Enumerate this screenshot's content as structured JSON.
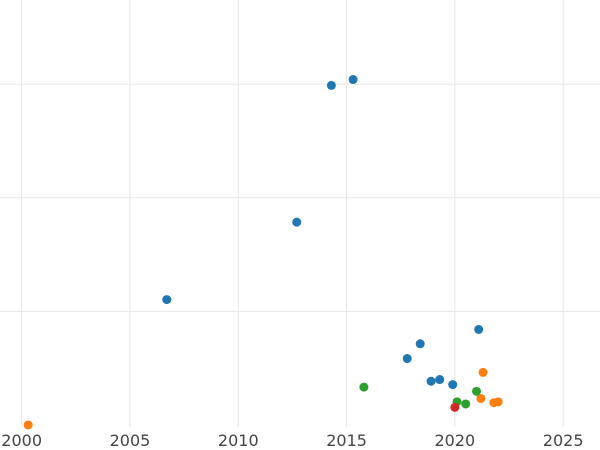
{
  "chart_data": {
    "type": "scatter",
    "title": "",
    "xlabel": "",
    "ylabel": "",
    "xlim": [
      1999.0,
      2026.7
    ],
    "ylim": [
      0,
      1.01
    ],
    "x_ticks": [
      2000,
      2005,
      2010,
      2015,
      2020,
      2025
    ],
    "y_gridlines": [
      0.27,
      0.54,
      0.81
    ],
    "y_tick_labels_visible": false,
    "grid": true,
    "legend": "none",
    "series": [
      {
        "color": "#1f77b4",
        "points": [
          {
            "x": 2014.3,
            "y": 0.807
          },
          {
            "x": 2015.3,
            "y": 0.821
          },
          {
            "x": 2012.7,
            "y": 0.482
          },
          {
            "x": 2006.7,
            "y": 0.298
          },
          {
            "x": 2021.1,
            "y": 0.227
          },
          {
            "x": 2018.4,
            "y": 0.193
          },
          {
            "x": 2017.8,
            "y": 0.158
          },
          {
            "x": 2019.3,
            "y": 0.108
          },
          {
            "x": 2018.9,
            "y": 0.104
          },
          {
            "x": 2019.9,
            "y": 0.096
          }
        ]
      },
      {
        "color": "#ff7f0e",
        "points": [
          {
            "x": 2000.3,
            "y": 0.0
          },
          {
            "x": 2021.3,
            "y": 0.125
          },
          {
            "x": 2021.2,
            "y": 0.063
          },
          {
            "x": 2021.8,
            "y": 0.053
          },
          {
            "x": 2022.0,
            "y": 0.055
          }
        ]
      },
      {
        "color": "#2ca02c",
        "points": [
          {
            "x": 2015.8,
            "y": 0.09
          },
          {
            "x": 2021.0,
            "y": 0.08
          },
          {
            "x": 2020.1,
            "y": 0.055
          },
          {
            "x": 2020.5,
            "y": 0.05
          }
        ]
      },
      {
        "color": "#d62728",
        "points": [
          {
            "x": 2020.0,
            "y": 0.042
          }
        ]
      }
    ]
  }
}
